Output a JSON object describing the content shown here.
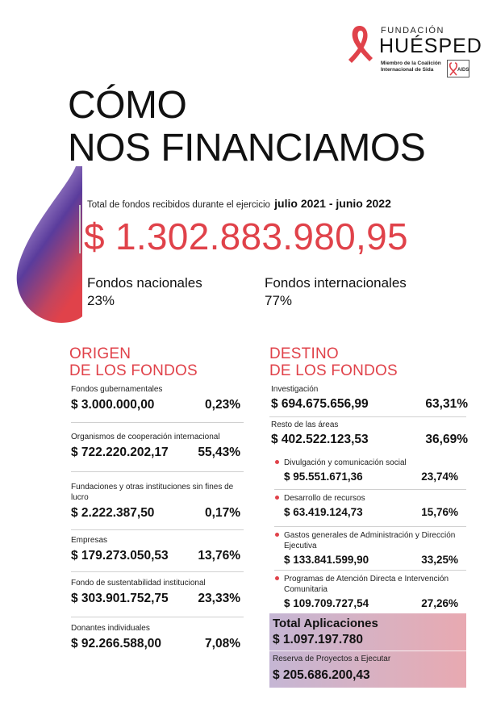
{
  "logo": {
    "fundacion": "FUNDACIÓN",
    "huesped": "HUÉSPED",
    "miembro": "Miembro de la Coalición Internacional de Sida",
    "aids_mark": "AIDS",
    "colors": {
      "ribbon": "#e0424a"
    }
  },
  "title": {
    "line1": "CÓMO",
    "line2": "NOS FINANCIAMOS"
  },
  "summary": {
    "total_label": "Total de fondos recibidos durante el ejercicio",
    "period": "julio 2021 - junio 2022",
    "total_amount": "$ 1.302.883.980,95",
    "national_label": "Fondos nacionales",
    "national_pct": "23%",
    "international_label": "Fondos internacionales",
    "international_pct": "77%"
  },
  "origin": {
    "heading1": "ORIGEN",
    "heading2": "DE LOS FONDOS",
    "items": [
      {
        "label": "Fondos gubernamentales",
        "amount": "$ 3.000.000,00",
        "pct": "0,23%"
      },
      {
        "label": "Organismos de cooperación internacional",
        "amount": "$ 722.220.202,17",
        "pct": "55,43%"
      },
      {
        "label": "Fundaciones y otras instituciones sin fines de lucro",
        "amount": "$ 2.222.387,50",
        "pct": "0,17%"
      },
      {
        "label": "Empresas",
        "amount": "$ 179.273.050,53",
        "pct": "13,76%"
      },
      {
        "label": "Fondo de sustentabilidad institucional",
        "amount": "$ 303.901.752,75",
        "pct": "23,33%"
      },
      {
        "label": "Donantes individuales",
        "amount": "$ 92.266.588,00",
        "pct": "7,08%"
      }
    ]
  },
  "destination": {
    "heading1": "DESTINO",
    "heading2": "DE LOS FONDOS",
    "items": [
      {
        "label": "Investigación",
        "amount": "$ 694.675.656,99",
        "pct": "63,31%"
      },
      {
        "label": "Resto de las áreas",
        "amount": "$ 402.522.123,53",
        "pct": "36,69%"
      }
    ],
    "sub_items": [
      {
        "label": "Divulgación y comunicación social",
        "amount": "$ 95.551.671,36",
        "pct": "23,74%"
      },
      {
        "label": "Desarrollo de recursos",
        "amount": "$ 63.419.124,73",
        "pct": "15,76%"
      },
      {
        "label": "Gastos generales de Administración y Dirección Ejecutiva",
        "amount": "$ 133.841.599,90",
        "pct": "33,25%"
      },
      {
        "label": "Programas de Atención Directa e Intervención Comunitaria",
        "amount": "$ 109.709.727,54",
        "pct": "27,26%"
      }
    ],
    "total_label": "Total Aplicaciones",
    "total_amount": "$ 1.097.197.780",
    "reserve_label": "Reserva de Proyectos a Ejecutar",
    "reserve_amount": "$ 205.686.200,43"
  },
  "colors": {
    "accent": "#e0424a",
    "purple": "#5a3c9c"
  }
}
